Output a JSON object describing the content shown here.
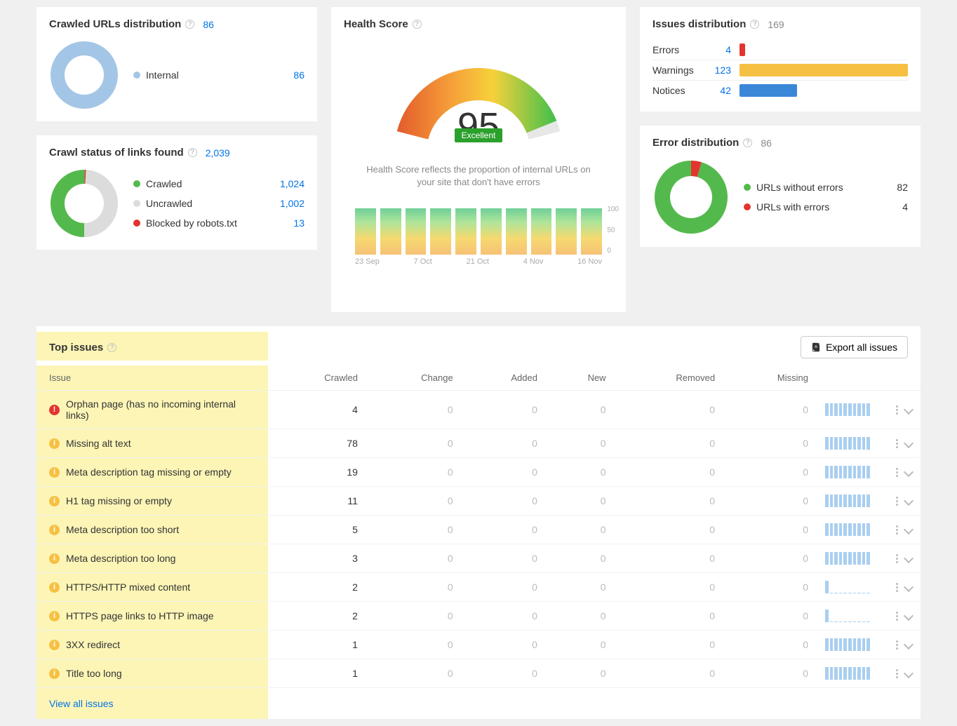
{
  "colors": {
    "link": "#0073e6",
    "error": "#e3342f",
    "warning": "#f6c042",
    "notice": "#3a87d8",
    "ok_green": "#54b94d",
    "neutral_gray": "#d9d9d9",
    "uncrawled_gray": "#dcdcdc",
    "sparkline": "#a9cff0",
    "highlight": "#fcf5b6"
  },
  "crawled_urls": {
    "title": "Crawled URLs distribution",
    "total": 86,
    "donut": {
      "type": "donut",
      "segments": [
        {
          "label": "Internal",
          "value": 86,
          "color": "#a4c6e6"
        }
      ],
      "inner_r": 28,
      "outer_r": 48
    },
    "legend": [
      {
        "label": "Internal",
        "value": 86,
        "color": "#a4c6e6",
        "value_color": "link"
      }
    ]
  },
  "crawl_status": {
    "title": "Crawl status of links found",
    "total": "2,039",
    "donut": {
      "type": "donut",
      "segments": [
        {
          "label": "Crawled",
          "value": 1024,
          "color": "#54b94d"
        },
        {
          "label": "Blocked by robots.txt",
          "value": 13,
          "color": "#e3342f"
        },
        {
          "label": "Uncrawled",
          "value": 1002,
          "color": "#dcdcdc"
        }
      ],
      "inner_r": 28,
      "outer_r": 48,
      "start_angle_deg": 90
    },
    "legend": [
      {
        "label": "Crawled",
        "value": "1,024",
        "color": "#54b94d",
        "value_color": "link"
      },
      {
        "label": "Uncrawled",
        "value": "1,002",
        "color": "#dcdcdc",
        "value_color": "link"
      },
      {
        "label": "Blocked by robots.txt",
        "value": 13,
        "color": "#e3342f",
        "value_color": "link"
      }
    ]
  },
  "health": {
    "title": "Health Score",
    "score": 95,
    "badge": "Excellent",
    "badge_bg": "#2ca02c",
    "desc": "Health Score reflects the proportion of internal URLs on your site that don't have errors",
    "gauge": {
      "type": "gauge",
      "min": 0,
      "max": 100,
      "value": 95,
      "arc_width": 46,
      "gradient_stops": [
        {
          "pct": 0,
          "color": "#e35b2c"
        },
        {
          "pct": 35,
          "color": "#f6a13a"
        },
        {
          "pct": 60,
          "color": "#f6d13a"
        },
        {
          "pct": 100,
          "color": "#3fbf4c"
        }
      ],
      "empty_color": "#e7e7e7"
    },
    "bars": {
      "type": "bar",
      "ymax": 100,
      "yticks": [
        100,
        50,
        0
      ],
      "gradient_top": "#6fcf97",
      "gradient_bottom": "#f6c177",
      "values": [
        95,
        95,
        95,
        95,
        95,
        95,
        95,
        95,
        95,
        95
      ],
      "x_labels": [
        "23 Sep",
        "7 Oct",
        "21 Oct",
        "4 Nov",
        "16 Nov"
      ]
    }
  },
  "issues_dist": {
    "title": "Issues distribution",
    "total": 169,
    "max": 123,
    "rows": [
      {
        "label": "Errors",
        "value": 4,
        "color": "#e3342f"
      },
      {
        "label": "Warnings",
        "value": 123,
        "color": "#f6c042"
      },
      {
        "label": "Notices",
        "value": 42,
        "color": "#3a87d8"
      }
    ]
  },
  "error_dist": {
    "title": "Error distribution",
    "total": 86,
    "donut": {
      "type": "donut",
      "segments": [
        {
          "label": "URLs with errors",
          "value": 4,
          "color": "#e3342f"
        },
        {
          "label": "URLs without errors",
          "value": 82,
          "color": "#54b94d"
        }
      ],
      "inner_r": 30,
      "outer_r": 52,
      "start_angle_deg": -90
    },
    "legend": [
      {
        "label": "URLs without errors",
        "value": 82,
        "color": "#54b94d",
        "value_color": "dark"
      },
      {
        "label": "URLs with errors",
        "value": 4,
        "color": "#e3342f",
        "value_color": "dark"
      }
    ]
  },
  "top_issues": {
    "title": "Top issues",
    "export_label": "Export all issues",
    "columns": [
      "Issue",
      "Crawled",
      "Change",
      "Added",
      "New",
      "Removed",
      "Missing"
    ],
    "view_all": "View all issues",
    "spark_full": [
      1,
      1,
      1,
      1,
      1,
      1,
      1,
      1,
      1,
      1
    ],
    "spark_one": [
      1,
      0,
      0,
      0,
      0,
      0,
      0,
      0,
      0,
      0
    ],
    "rows": [
      {
        "severity": "error",
        "name": "Orphan page (has no incoming internal links)",
        "crawled": 4,
        "change": 0,
        "added": 0,
        "new": 0,
        "removed": 0,
        "missing": 0,
        "spark": "full"
      },
      {
        "severity": "warning",
        "name": "Missing alt text",
        "crawled": 78,
        "change": 0,
        "added": 0,
        "new": 0,
        "removed": 0,
        "missing": 0,
        "spark": "full"
      },
      {
        "severity": "warning",
        "name": "Meta description tag missing or empty",
        "crawled": 19,
        "change": 0,
        "added": 0,
        "new": 0,
        "removed": 0,
        "missing": 0,
        "spark": "full"
      },
      {
        "severity": "warning",
        "name": "H1 tag missing or empty",
        "crawled": 11,
        "change": 0,
        "added": 0,
        "new": 0,
        "removed": 0,
        "missing": 0,
        "spark": "full"
      },
      {
        "severity": "warning",
        "name": "Meta description too short",
        "crawled": 5,
        "change": 0,
        "added": 0,
        "new": 0,
        "removed": 0,
        "missing": 0,
        "spark": "full"
      },
      {
        "severity": "warning",
        "name": "Meta description too long",
        "crawled": 3,
        "change": 0,
        "added": 0,
        "new": 0,
        "removed": 0,
        "missing": 0,
        "spark": "full"
      },
      {
        "severity": "warning",
        "name": "HTTPS/HTTP mixed content",
        "crawled": 2,
        "change": 0,
        "added": 0,
        "new": 0,
        "removed": 0,
        "missing": 0,
        "spark": "one"
      },
      {
        "severity": "warning",
        "name": "HTTPS page links to HTTP image",
        "crawled": 2,
        "change": 0,
        "added": 0,
        "new": 0,
        "removed": 0,
        "missing": 0,
        "spark": "one"
      },
      {
        "severity": "warning",
        "name": "3XX redirect",
        "crawled": 1,
        "change": 0,
        "added": 0,
        "new": 0,
        "removed": 0,
        "missing": 0,
        "spark": "full"
      },
      {
        "severity": "warning",
        "name": "Title too long",
        "crawled": 1,
        "change": 0,
        "added": 0,
        "new": 0,
        "removed": 0,
        "missing": 0,
        "spark": "full"
      }
    ]
  }
}
